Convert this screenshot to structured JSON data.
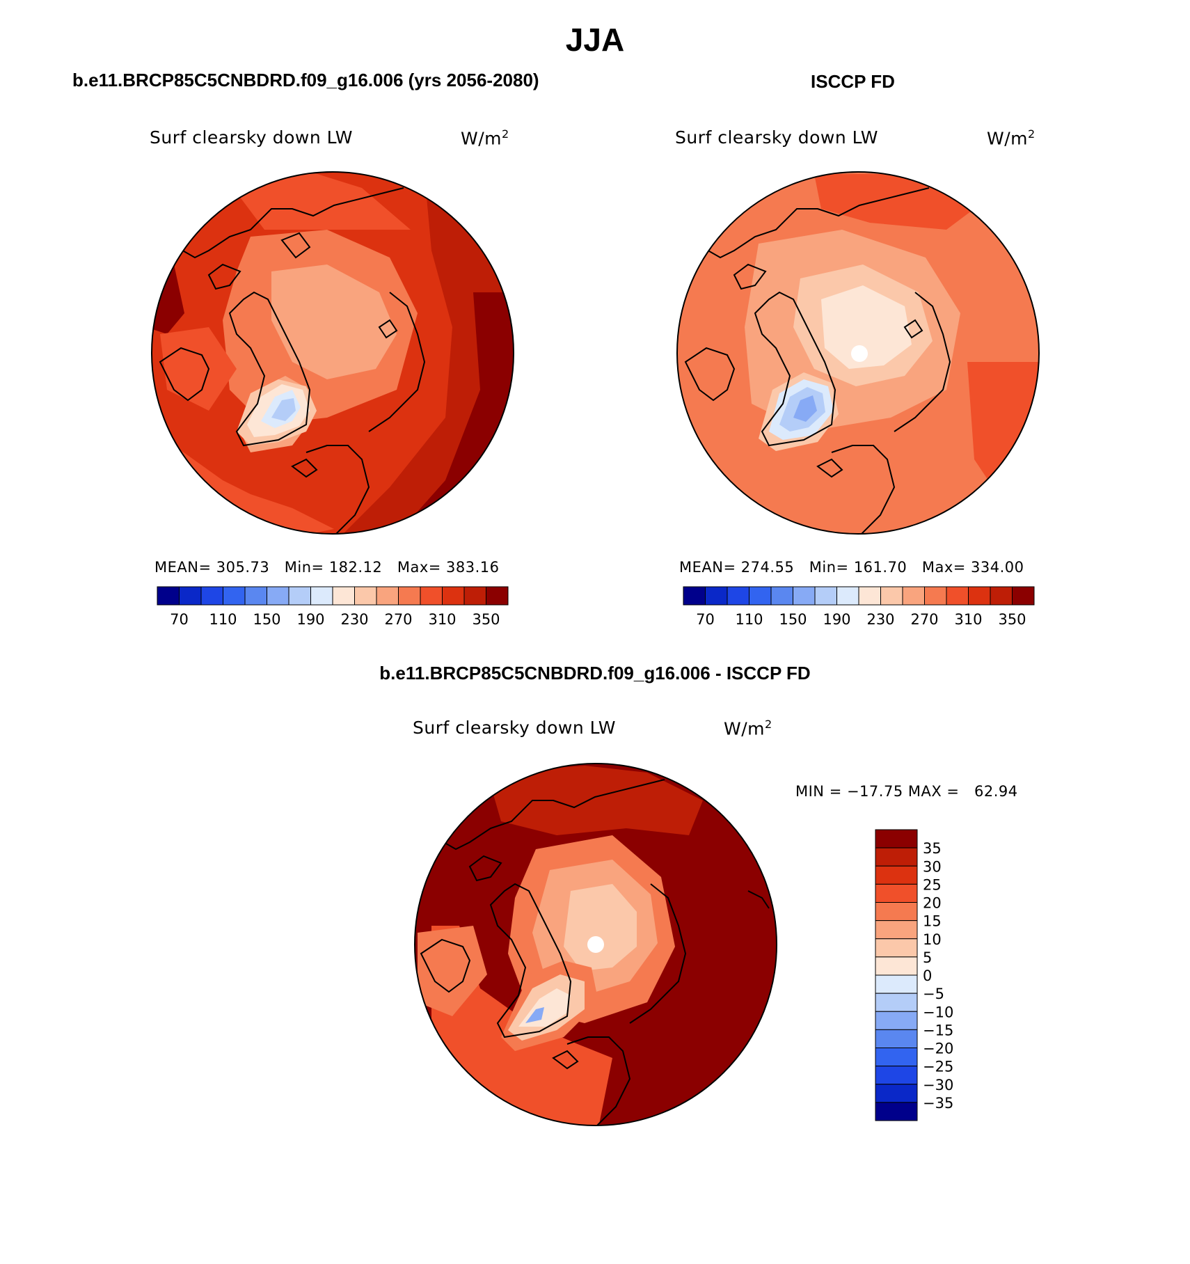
{
  "season": "JJA",
  "panels": [
    {
      "title": "b.e11.BRCP85C5CNBDRD.f09_g16.006 (yrs 2056-2080)",
      "variable": "Surf clearsky down LW",
      "units_base": "W/m",
      "units_exp": "2",
      "stats": {
        "mean_label": "MEAN=",
        "mean": "305.73",
        "min_label": "Min=",
        "min": "182.12",
        "max_label": "Max=",
        "max": "383.16"
      }
    },
    {
      "title": "ISCCP FD",
      "variable": "Surf clearsky down LW",
      "units_base": "W/m",
      "units_exp": "2",
      "stats": {
        "mean_label": "MEAN=",
        "mean": "274.55",
        "min_label": "Min=",
        "min": "161.70",
        "max_label": "Max=",
        "max": "334.00"
      }
    },
    {
      "title": "b.e11.BRCP85C5CNBDRD.f09_g16.006 - ISCCP FD",
      "variable": "Surf clearsky down LW",
      "units_base": "W/m",
      "units_exp": "2",
      "minmax": "MIN = −17.75 MAX =   62.94"
    }
  ],
  "chart_data": [
    {
      "type": "heatmap",
      "title": "b.e11.BRCP85C5CNBDRD.f09_g16.006 (yrs 2056-2080)",
      "field": "Surf clearsky down LW",
      "units": "W/m2",
      "projection": "north polar stereographic",
      "mean": 305.73,
      "min": 182.12,
      "max": 383.16,
      "contour_levels": [
        70,
        90,
        110,
        130,
        150,
        170,
        190,
        210,
        230,
        250,
        270,
        290,
        310,
        330,
        350
      ],
      "colorbar_ticks": [
        "70",
        "110",
        "150",
        "190",
        "230",
        "270",
        "310",
        "350"
      ]
    },
    {
      "type": "heatmap",
      "title": "ISCCP FD",
      "field": "Surf clearsky down LW",
      "units": "W/m2",
      "projection": "north polar stereographic",
      "mean": 274.55,
      "min": 161.7,
      "max": 334.0,
      "contour_levels": [
        70,
        90,
        110,
        130,
        150,
        170,
        190,
        210,
        230,
        250,
        270,
        290,
        310,
        330,
        350
      ],
      "colorbar_ticks": [
        "70",
        "110",
        "150",
        "190",
        "230",
        "270",
        "310",
        "350"
      ]
    },
    {
      "type": "heatmap",
      "title": "b.e11.BRCP85C5CNBDRD.f09_g16.006 - ISCCP FD",
      "field": "Surf clearsky down LW",
      "units": "W/m2",
      "projection": "north polar stereographic",
      "min": -17.75,
      "max": 62.94,
      "contour_levels": [
        -35,
        -30,
        -25,
        -20,
        -15,
        -10,
        -5,
        0,
        5,
        10,
        15,
        20,
        25,
        30,
        35
      ],
      "colorbar_ticks": [
        "35",
        "30",
        "25",
        "20",
        "15",
        "10",
        "5",
        "0",
        "−5",
        "−10",
        "−15",
        "−20",
        "−25",
        "−30",
        "−35"
      ]
    }
  ],
  "palette": [
    "#00008b",
    "#0a28c8",
    "#1e46e6",
    "#3264f0",
    "#5a87f0",
    "#87aaf5",
    "#b4cdf8",
    "#dceafc",
    "#fde6d6",
    "#fbc8aa",
    "#f9a47e",
    "#f57a50",
    "#f0502a",
    "#dc3210",
    "#be1e06",
    "#8b0000"
  ]
}
